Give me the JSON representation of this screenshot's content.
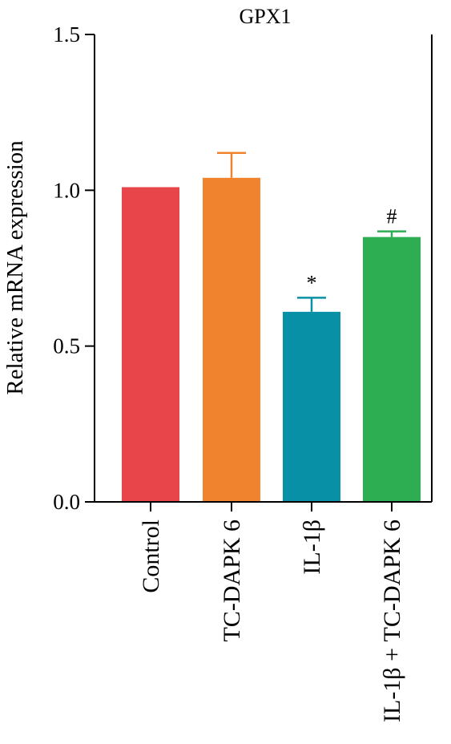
{
  "chart_data": {
    "type": "bar",
    "title": "GPX1",
    "ylabel": "Relative mRNA expression",
    "xlabel": "",
    "ylim": [
      0,
      1.5
    ],
    "yticks": [
      0.0,
      0.5,
      1.0,
      1.5
    ],
    "ytick_labels": [
      "0.0",
      "0.5",
      "1.0",
      "1.5"
    ],
    "categories": [
      "Control",
      "TC-DAPK 6",
      "IL-1β",
      "IL-1β + TC-DAPK 6"
    ],
    "values": [
      1.01,
      1.04,
      0.61,
      0.85
    ],
    "errors": [
      0.0,
      0.08,
      0.045,
      0.018
    ],
    "annotations": [
      "",
      "",
      "*",
      "#"
    ],
    "colors": [
      "#e8454a",
      "#f0842e",
      "#0890a6",
      "#2eae52"
    ],
    "grid": false,
    "legend": "none"
  }
}
